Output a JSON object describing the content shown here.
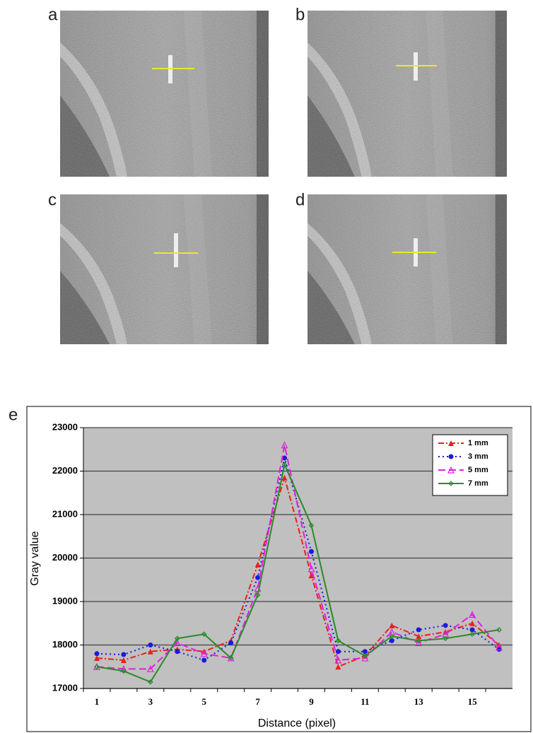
{
  "panels": [
    "a",
    "b",
    "c",
    "d"
  ],
  "figure_label": "e",
  "chart_data": {
    "type": "line",
    "xlabel": "Distance (pixel)",
    "ylabel": "Gray value",
    "categories": [
      1,
      null,
      3,
      null,
      5,
      null,
      7,
      null,
      9,
      null,
      11,
      null,
      13,
      null,
      15,
      null
    ],
    "ylim": [
      17000,
      23000
    ],
    "yticks": [
      17000,
      18000,
      19000,
      20000,
      21000,
      22000,
      23000
    ],
    "grid": true,
    "legend": "upper right",
    "series": [
      {
        "name": "1 mm",
        "color": "#e8201c",
        "values": [
          17700,
          17650,
          17850,
          17900,
          17850,
          18100,
          19850,
          21850,
          19600,
          17500,
          17750,
          18450,
          18200,
          18300,
          18500,
          18000
        ]
      },
      {
        "name": "3 mm",
        "color": "#1a1ae0",
        "values": [
          17800,
          17780,
          18000,
          17850,
          17650,
          18050,
          19550,
          22300,
          20150,
          17850,
          17850,
          18100,
          18350,
          18450,
          18350,
          17900
        ]
      },
      {
        "name": "5 mm",
        "color": "#e020e0",
        "values": [
          17500,
          17450,
          17450,
          18050,
          17800,
          17700,
          19300,
          22600,
          19750,
          17650,
          17700,
          18300,
          18050,
          18250,
          18700,
          17950
        ]
      },
      {
        "name": "7 mm",
        "color": "#2a8a2a",
        "values": [
          17500,
          17400,
          17150,
          18150,
          18250,
          17700,
          19150,
          22150,
          20750,
          18100,
          17750,
          18200,
          18100,
          18150,
          18250,
          18350
        ]
      }
    ]
  }
}
